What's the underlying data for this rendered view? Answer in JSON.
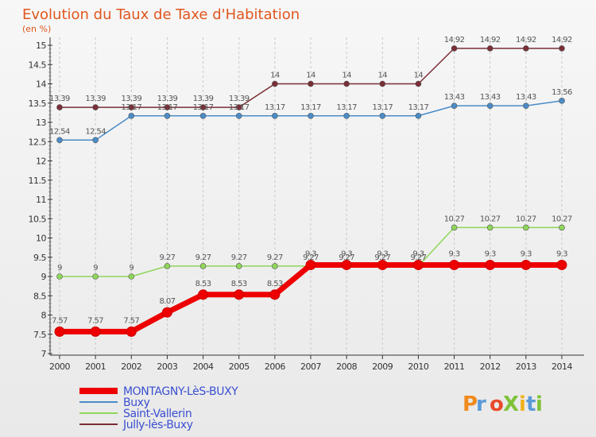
{
  "chart_data": {
    "type": "line",
    "title": "Evolution du Taux de Taxe d'Habitation",
    "subtitle": "(en %)",
    "x": [
      "2000",
      "2001",
      "2002",
      "2003",
      "2004",
      "2005",
      "2006",
      "2007",
      "2008",
      "2009",
      "2010",
      "2011",
      "2012",
      "2013",
      "2014"
    ],
    "ylim": [
      7,
      15
    ],
    "yticks": [
      "7",
      "7.5",
      "8",
      "8.5",
      "9",
      "9.5",
      "10",
      "10.5",
      "11",
      "11.5",
      "12",
      "12.5",
      "13",
      "13.5",
      "14",
      "14.5",
      "15"
    ],
    "grid": "vertical dashed",
    "legend": "bottom-left",
    "series": [
      {
        "name": "Jully-lès-Buxy",
        "color": "#7a2e36",
        "values": [
          13.39,
          13.39,
          13.39,
          13.39,
          13.39,
          13.39,
          14,
          14,
          14,
          14,
          14,
          14.92,
          14.92,
          14.92,
          14.92
        ],
        "labels": [
          "13.39",
          "13.39",
          "13.39",
          "13.39",
          "13.39",
          "13.39",
          "14",
          "14",
          "14",
          "14",
          "14",
          "14.92",
          "14.92",
          "14.92",
          "14.92"
        ]
      },
      {
        "name": "Buxy",
        "color": "#4a8cc8",
        "values": [
          12.54,
          12.54,
          13.17,
          13.17,
          13.17,
          13.17,
          13.17,
          13.17,
          13.17,
          13.17,
          13.17,
          13.43,
          13.43,
          13.43,
          13.56
        ],
        "labels": [
          "12.54",
          "12.54",
          "13.17",
          "13.17",
          "13.17",
          "13.17",
          "13.17",
          "13.17",
          "13.17",
          "13.17",
          "13.17",
          "13.43",
          "13.43",
          "13.43",
          "13.56"
        ]
      },
      {
        "name": "Saint-Vallerin",
        "color": "#8fd65a",
        "values": [
          9,
          9,
          9,
          9.27,
          9.27,
          9.27,
          9.27,
          9.27,
          9.27,
          9.27,
          9.27,
          10.27,
          10.27,
          10.27,
          10.27
        ],
        "labels": [
          "9",
          "9",
          "9",
          "9.27",
          "9.27",
          "9.27",
          "9.27",
          "9.27",
          "9.27",
          "9.27",
          "9.27",
          "10.27",
          "10.27",
          "10.27",
          "10.27"
        ]
      },
      {
        "name": "MONTAGNY-LèS-BUXY",
        "color": "#ee0000",
        "values": [
          7.57,
          7.57,
          7.57,
          8.07,
          8.53,
          8.53,
          8.53,
          9.3,
          9.3,
          9.3,
          9.3,
          9.3,
          9.3,
          9.3,
          9.3
        ],
        "labels": [
          "7.57",
          "7.57",
          "7.57",
          "8.07",
          "8.53",
          "8.53",
          "8.53",
          "9.3",
          "9.3",
          "9.3",
          "9.3",
          "9.3",
          "9.3",
          "9.3",
          "9.3"
        ]
      }
    ],
    "legend_entries": [
      "MONTAGNY-LèS-BUXY",
      "Buxy",
      "Saint-Vallerin",
      "Jully-lès-Buxy"
    ]
  },
  "colors": {
    "title": "#e0561e",
    "legend_text": "#3a4fd0",
    "logo_letters": [
      "#f08a1c",
      "#5a9ad8",
      "#e84a2a",
      "#7fc23a",
      "#f0b21c",
      "#5a9ad8",
      "#7fc23a"
    ]
  },
  "logo": {
    "text": "ProXiti",
    "letters": [
      "P",
      "r",
      "o",
      "X",
      "i",
      "t",
      "i"
    ]
  }
}
